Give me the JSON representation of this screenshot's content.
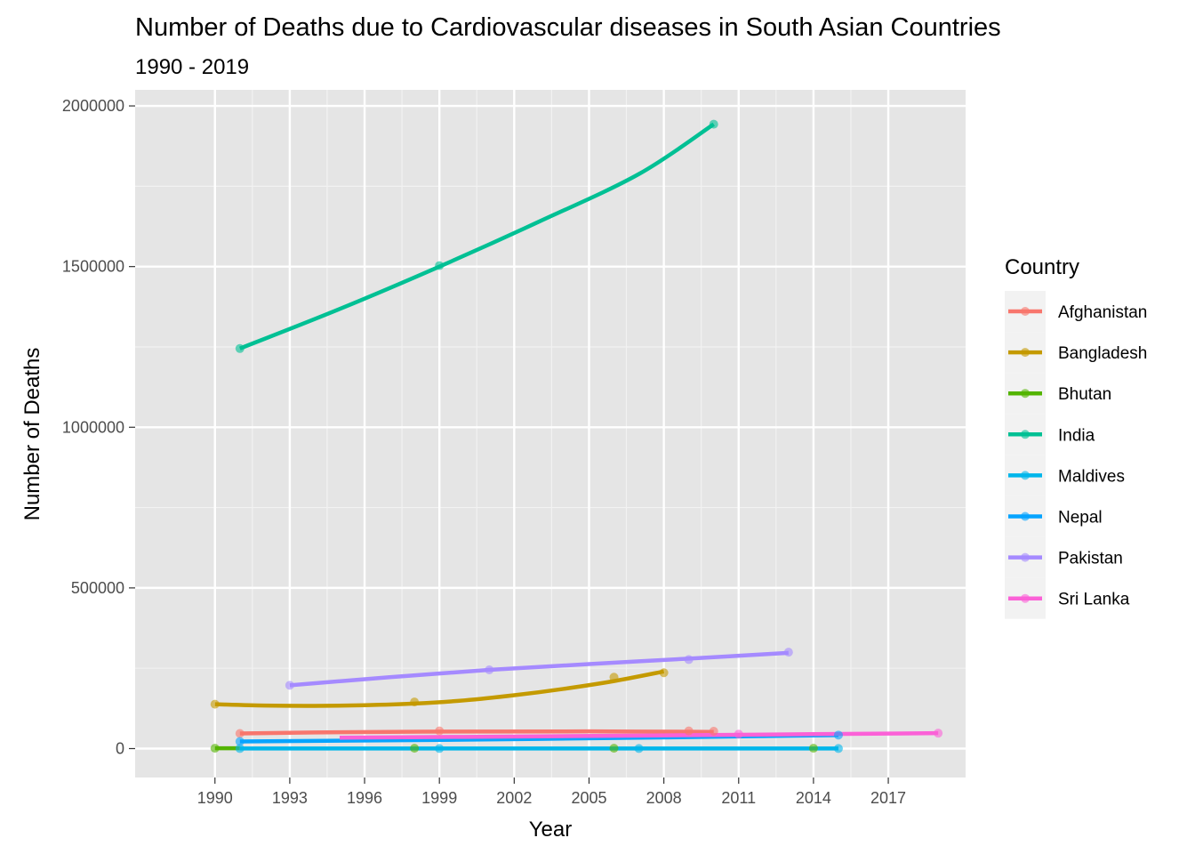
{
  "chart_data": {
    "type": "line",
    "title": "Number of Deaths due to Cardiovascular diseases in South Asian Countries",
    "subtitle": "1990 - 2019",
    "xlabel": "Year",
    "ylabel": "Number of Deaths",
    "xlim": [
      1986.8,
      2020.1
    ],
    "ylim": [
      -90000,
      2050000
    ],
    "x_ticks": [
      1990,
      1993,
      1996,
      1999,
      2002,
      2005,
      2008,
      2011,
      2014,
      2017
    ],
    "y_ticks": [
      0,
      500000,
      1000000,
      1500000,
      2000000
    ],
    "y_tick_labels": [
      "0",
      "500000",
      "1000000",
      "1500000",
      "2000000"
    ],
    "grid": true,
    "panel_background": "#e5e5e5",
    "legend": {
      "title": "Country",
      "position": "right"
    },
    "series": [
      {
        "name": "Afghanistan",
        "color": "#F8766D",
        "points": [
          [
            1991,
            47000
          ],
          [
            1999,
            55000
          ],
          [
            2009,
            55000
          ],
          [
            2010,
            54000
          ]
        ],
        "fit": [
          [
            1991,
            47000
          ],
          [
            1995,
            51000
          ],
          [
            2000,
            53000
          ],
          [
            2005,
            53500
          ],
          [
            2010,
            52000
          ]
        ]
      },
      {
        "name": "Bangladesh",
        "color": "#C49A00",
        "points": [
          [
            1990,
            138000
          ],
          [
            1998,
            145000
          ],
          [
            2006,
            222000
          ],
          [
            2008,
            236000
          ]
        ],
        "fit": [
          [
            1990,
            138000
          ],
          [
            1992,
            134000
          ],
          [
            1994,
            133000
          ],
          [
            1996,
            135000
          ],
          [
            1998,
            140000
          ],
          [
            2000,
            150000
          ],
          [
            2002,
            166000
          ],
          [
            2004,
            186000
          ],
          [
            2006,
            210000
          ],
          [
            2008,
            240000
          ]
        ]
      },
      {
        "name": "Bhutan",
        "color": "#53B400",
        "points": [
          [
            1990,
            1000
          ],
          [
            1998,
            1000
          ],
          [
            2006,
            1000
          ],
          [
            2014,
            1000
          ]
        ],
        "fit": [
          [
            1990,
            1000
          ],
          [
            1991,
            1000
          ]
        ]
      },
      {
        "name": "India",
        "color": "#00C094",
        "points": [
          [
            1991,
            1245000
          ],
          [
            1999,
            1503000
          ],
          [
            2010,
            1943000
          ]
        ],
        "fit": [
          [
            1991,
            1245000
          ],
          [
            1995,
            1368000
          ],
          [
            1999,
            1500000
          ],
          [
            2003,
            1640000
          ],
          [
            2007,
            1788000
          ],
          [
            2010,
            1943000
          ]
        ]
      },
      {
        "name": "Maldives",
        "color": "#00B6EB",
        "points": [
          [
            1991,
            200
          ],
          [
            1999,
            200
          ],
          [
            2007,
            200
          ],
          [
            2015,
            200
          ]
        ],
        "fit": [
          [
            1991,
            200
          ],
          [
            2015,
            200
          ]
        ]
      },
      {
        "name": "Nepal",
        "color": "#06A4FF",
        "points": [
          [
            1991,
            22000
          ],
          [
            2015,
            42000
          ]
        ],
        "fit": [
          [
            1991,
            22000
          ],
          [
            2003,
            30000
          ],
          [
            2015,
            42000
          ]
        ]
      },
      {
        "name": "Pakistan",
        "color": "#A58AFF",
        "points": [
          [
            1993,
            197000
          ],
          [
            2001,
            245000
          ],
          [
            2009,
            277000
          ],
          [
            2013,
            300000
          ]
        ],
        "fit": [
          [
            1993,
            197000
          ],
          [
            1997,
            222000
          ],
          [
            2001,
            245000
          ],
          [
            2005,
            263000
          ],
          [
            2009,
            280000
          ],
          [
            2013,
            298000
          ]
        ]
      },
      {
        "name": "Sri Lanka",
        "color": "#FB61D7",
        "points": [
          [
            2011,
            45000
          ],
          [
            2019,
            48000
          ]
        ],
        "fit": [
          [
            1995,
            34000
          ],
          [
            2003,
            38000
          ],
          [
            2011,
            43000
          ],
          [
            2019,
            48000
          ]
        ]
      }
    ]
  }
}
